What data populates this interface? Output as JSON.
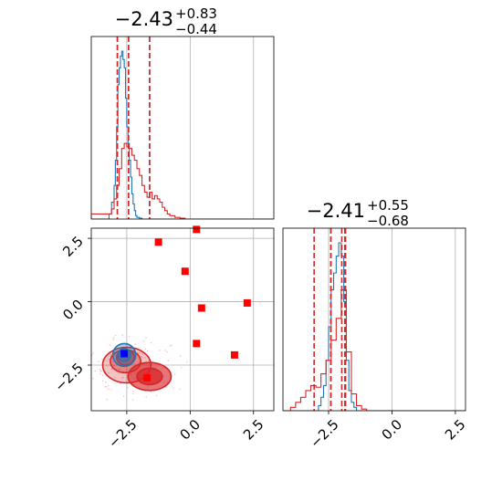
{
  "chart_data": [
    {
      "type": "histogram",
      "panel": "marginal-x",
      "title": {
        "value": "−2.43",
        "plus": "+0.83",
        "minus": "−0.44"
      },
      "xlim": [
        -3.9,
        3.3
      ],
      "grid": true,
      "series": [
        {
          "color": "#1f77b4",
          "bins": [
            -3.9,
            -3.2,
            -3.1,
            -3.0,
            -2.95,
            -2.9,
            -2.85,
            -2.8,
            -2.75,
            -2.7,
            -2.65,
            -2.6,
            -2.55,
            -2.5,
            -2.45,
            -2.4,
            -2.35,
            -2.3,
            -2.25,
            -2.2,
            -2.15,
            -2.1,
            -2.0,
            -1.9,
            -1.8,
            3.3
          ],
          "values": [
            0,
            0.03,
            0.1,
            0.2,
            0.35,
            0.55,
            0.8,
            0.9,
            0.97,
            1.0,
            0.95,
            0.9,
            0.72,
            0.55,
            0.45,
            0.35,
            0.25,
            0.15,
            0.09,
            0.05,
            0.02,
            0.01,
            0.005,
            0,
            0
          ],
          "quantile_lines": [
            -2.87,
            -2.43,
            -1.6
          ]
        },
        {
          "color": "#d62728",
          "bins": [
            -3.9,
            -3.1,
            -3.0,
            -2.9,
            -2.8,
            -2.7,
            -2.6,
            -2.5,
            -2.4,
            -2.3,
            -2.2,
            -2.1,
            -2.0,
            -1.9,
            -1.8,
            -1.7,
            -1.6,
            -1.5,
            -1.4,
            -1.3,
            -1.2,
            -1.1,
            -1.0,
            -0.9,
            -0.8,
            -0.6,
            -0.4,
            -0.2,
            3.3
          ],
          "values": [
            0.03,
            0.06,
            0.12,
            0.2,
            0.3,
            0.42,
            0.45,
            0.43,
            0.42,
            0.38,
            0.35,
            0.3,
            0.26,
            0.2,
            0.16,
            0.13,
            0.16,
            0.12,
            0.14,
            0.12,
            0.1,
            0.07,
            0.05,
            0.03,
            0.02,
            0.01,
            0.005,
            0
          ],
          "quantile_lines": [
            -2.87,
            -2.43,
            -1.6
          ]
        }
      ]
    },
    {
      "type": "histogram",
      "panel": "marginal-y",
      "title": {
        "value": "−2.41",
        "plus": "+0.55",
        "minus": "−0.68"
      },
      "xlim": [
        -4.3,
        2.9
      ],
      "xticks": [
        -2.5,
        0.0,
        2.5
      ],
      "xtick_labels": [
        "−2.5",
        "0.0",
        "2.5"
      ],
      "grid": true,
      "series": [
        {
          "color": "#1f77b4",
          "bins": [
            -4.3,
            -2.9,
            -2.8,
            -2.7,
            -2.6,
            -2.5,
            -2.4,
            -2.3,
            -2.2,
            -2.1,
            -2.0,
            -1.9,
            -1.8,
            -1.7,
            -1.6,
            -1.5,
            -1.4,
            2.9
          ],
          "values": [
            0,
            0.03,
            0.08,
            0.15,
            0.3,
            0.5,
            0.72,
            0.82,
            0.92,
            1.0,
            0.92,
            0.65,
            0.3,
            0.12,
            0.05,
            0.02,
            0
          ],
          "quantile_lines": [
            -2.41,
            -1.86
          ]
        },
        {
          "color": "#d62728",
          "bins": [
            -4.3,
            -4.0,
            -3.8,
            -3.6,
            -3.4,
            -3.2,
            -3.0,
            -2.8,
            -2.6,
            -2.4,
            -2.2,
            -2.0,
            -1.8,
            -1.6,
            -1.4,
            -1.2,
            -1.0,
            2.9
          ],
          "values": [
            0,
            0.02,
            0.05,
            0.08,
            0.12,
            0.15,
            0.14,
            0.22,
            0.3,
            0.42,
            0.55,
            0.72,
            0.35,
            0.1,
            0.03,
            0.01,
            0
          ],
          "quantile_lines": [
            -3.07,
            -2.41,
            -1.98,
            -1.83
          ]
        }
      ]
    },
    {
      "type": "scatter",
      "panel": "joint",
      "xlim": [
        -3.9,
        3.3
      ],
      "ylim": [
        -4.3,
        2.9
      ],
      "xticks": [
        -2.5,
        0.0,
        2.5
      ],
      "xtick_labels": [
        "−2.5",
        "0.0",
        "2.5"
      ],
      "yticks": [
        -2.5,
        0.0,
        2.5
      ],
      "ytick_labels": [
        "−2.5",
        "0.0",
        "2.5"
      ],
      "grid": true,
      "contours": [
        {
          "color": "#d62728",
          "description": "red posterior density contours",
          "levels": [
            {
              "cx": -2.5,
              "cy": -2.5,
              "rx": 0.95,
              "ry": 0.7
            },
            {
              "cx": -2.55,
              "cy": -2.35,
              "rx": 0.6,
              "ry": 0.45
            },
            {
              "cx": -2.55,
              "cy": -2.2,
              "rx": 0.35,
              "ry": 0.3
            },
            {
              "cx": -1.6,
              "cy": -2.95,
              "rx": 0.85,
              "ry": 0.55
            },
            {
              "cx": -1.6,
              "cy": -2.95,
              "rx": 0.5,
              "ry": 0.32
            }
          ]
        },
        {
          "color": "#1f77b4",
          "description": "blue posterior density contours",
          "levels": [
            {
              "cx": -2.6,
              "cy": -2.1,
              "rx": 0.45,
              "ry": 0.45
            },
            {
              "cx": -2.6,
              "cy": -2.1,
              "rx": 0.25,
              "ry": 0.25
            }
          ]
        }
      ],
      "markers": [
        {
          "x": -1.25,
          "y": 2.35,
          "color": "#ff0000",
          "shape": "square"
        },
        {
          "x": 0.25,
          "y": 2.85,
          "color": "#ff0000",
          "shape": "square"
        },
        {
          "x": -0.2,
          "y": 1.2,
          "color": "#ff0000",
          "shape": "square"
        },
        {
          "x": 2.25,
          "y": -0.05,
          "color": "#ff0000",
          "shape": "square"
        },
        {
          "x": 0.45,
          "y": -0.25,
          "color": "#ff0000",
          "shape": "square"
        },
        {
          "x": 0.25,
          "y": -1.65,
          "color": "#ff0000",
          "shape": "square"
        },
        {
          "x": 1.75,
          "y": -2.1,
          "color": "#ff0000",
          "shape": "square"
        },
        {
          "x": -1.7,
          "y": -3.0,
          "color": "#ff0000",
          "shape": "square"
        },
        {
          "x": -2.6,
          "y": -2.05,
          "color": "#0000ff",
          "shape": "square"
        }
      ]
    }
  ]
}
